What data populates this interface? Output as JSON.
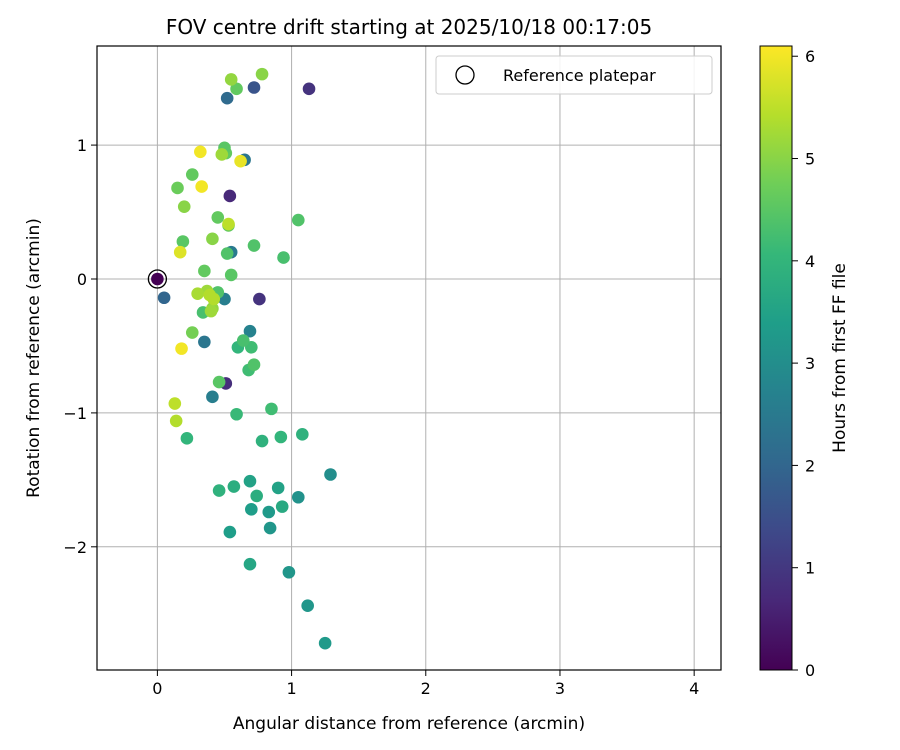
{
  "chart_data": {
    "type": "scatter",
    "title": "FOV centre drift starting at 2025/10/18 00:17:05",
    "xlabel": "Angular distance from reference (arcmin)",
    "ylabel": "Rotation from reference (arcmin)",
    "xlim": [
      -0.45,
      4.2
    ],
    "ylim": [
      -2.92,
      1.74
    ],
    "xticks": [
      0,
      1,
      2,
      3,
      4
    ],
    "xtick_labels": [
      "0",
      "1",
      "2",
      "3",
      "4"
    ],
    "yticks": [
      -2,
      -1,
      0,
      1
    ],
    "ytick_labels": [
      "−2",
      "−1",
      "0",
      "1"
    ],
    "grid": true,
    "legend": {
      "position": "top-right",
      "entries": [
        "Reference platepar"
      ]
    },
    "reference_point": {
      "x": 0,
      "y": 0,
      "label": "Reference platepar"
    },
    "colorbar": {
      "label": "Hours from first FF file",
      "colormap": "viridis",
      "range": [
        0,
        6.1
      ],
      "ticks": [
        0,
        1,
        2,
        3,
        4,
        5,
        6
      ],
      "tick_labels": [
        "0",
        "1",
        "2",
        "3",
        "4",
        "5",
        "6"
      ],
      "colors": [
        "#440154",
        "#482878",
        "#3e4989",
        "#31688e",
        "#26828e",
        "#1f9e89",
        "#35b779",
        "#6ece58",
        "#b5de2b",
        "#fde725"
      ]
    },
    "points": [
      {
        "x": 0.0,
        "y": 0.0,
        "t": 0.0
      },
      {
        "x": 1.13,
        "y": 1.42,
        "t": 0.9
      },
      {
        "x": 0.54,
        "y": 0.62,
        "t": 0.7
      },
      {
        "x": 0.76,
        "y": -0.15,
        "t": 0.9
      },
      {
        "x": 0.51,
        "y": -0.78,
        "t": 0.8
      },
      {
        "x": 0.72,
        "y": 1.43,
        "t": 1.6
      },
      {
        "x": 0.52,
        "y": 1.35,
        "t": 2.1
      },
      {
        "x": 0.05,
        "y": -0.14,
        "t": 2.0
      },
      {
        "x": 0.35,
        "y": -0.47,
        "t": 2.4
      },
      {
        "x": 0.41,
        "y": -0.88,
        "t": 2.6
      },
      {
        "x": 0.65,
        "y": 0.89,
        "t": 2.4
      },
      {
        "x": 0.55,
        "y": 0.2,
        "t": 2.5
      },
      {
        "x": 0.5,
        "y": -0.15,
        "t": 2.6
      },
      {
        "x": 0.69,
        "y": -0.39,
        "t": 2.7
      },
      {
        "x": 1.29,
        "y": -1.46,
        "t": 3.0
      },
      {
        "x": 1.25,
        "y": -2.72,
        "t": 3.3
      },
      {
        "x": 1.12,
        "y": -2.44,
        "t": 3.2
      },
      {
        "x": 0.98,
        "y": -2.19,
        "t": 3.2
      },
      {
        "x": 1.05,
        "y": -1.63,
        "t": 3.1
      },
      {
        "x": 0.84,
        "y": -1.86,
        "t": 3.2
      },
      {
        "x": 0.83,
        "y": -1.74,
        "t": 3.3
      },
      {
        "x": 0.7,
        "y": -1.72,
        "t": 3.4
      },
      {
        "x": 0.69,
        "y": -2.13,
        "t": 3.6
      },
      {
        "x": 0.54,
        "y": -1.89,
        "t": 3.4
      },
      {
        "x": 0.9,
        "y": -1.56,
        "t": 3.5
      },
      {
        "x": 0.93,
        "y": -1.7,
        "t": 3.7
      },
      {
        "x": 0.69,
        "y": -1.51,
        "t": 3.5
      },
      {
        "x": 0.57,
        "y": -1.55,
        "t": 3.8
      },
      {
        "x": 0.46,
        "y": -1.58,
        "t": 3.9
      },
      {
        "x": 0.74,
        "y": -1.62,
        "t": 3.8
      },
      {
        "x": 0.78,
        "y": -1.21,
        "t": 3.9
      },
      {
        "x": 0.92,
        "y": -1.18,
        "t": 4.0
      },
      {
        "x": 1.08,
        "y": -1.16,
        "t": 3.9
      },
      {
        "x": 0.22,
        "y": -1.19,
        "t": 4.0
      },
      {
        "x": 0.59,
        "y": -1.01,
        "t": 4.1
      },
      {
        "x": 0.85,
        "y": -0.97,
        "t": 4.2
      },
      {
        "x": 0.68,
        "y": -0.68,
        "t": 4.2
      },
      {
        "x": 0.72,
        "y": -0.64,
        "t": 4.4
      },
      {
        "x": 0.7,
        "y": -0.51,
        "t": 4.2
      },
      {
        "x": 0.6,
        "y": -0.51,
        "t": 4.0
      },
      {
        "x": 0.64,
        "y": -0.46,
        "t": 4.3
      },
      {
        "x": 0.46,
        "y": -0.77,
        "t": 4.5
      },
      {
        "x": 0.34,
        "y": -0.25,
        "t": 4.3
      },
      {
        "x": 0.45,
        "y": -0.1,
        "t": 4.4
      },
      {
        "x": 0.55,
        "y": 0.03,
        "t": 4.5
      },
      {
        "x": 0.35,
        "y": 0.06,
        "t": 4.6
      },
      {
        "x": 0.52,
        "y": 0.19,
        "t": 4.4
      },
      {
        "x": 0.72,
        "y": 0.25,
        "t": 4.4
      },
      {
        "x": 0.94,
        "y": 0.16,
        "t": 4.3
      },
      {
        "x": 1.05,
        "y": 0.44,
        "t": 4.4
      },
      {
        "x": 0.19,
        "y": 0.28,
        "t": 4.5
      },
      {
        "x": 0.45,
        "y": 0.46,
        "t": 4.6
      },
      {
        "x": 0.53,
        "y": 0.4,
        "t": 4.6
      },
      {
        "x": 0.15,
        "y": 0.68,
        "t": 4.7
      },
      {
        "x": 0.26,
        "y": 0.78,
        "t": 4.6
      },
      {
        "x": 0.51,
        "y": 0.94,
        "t": 4.6
      },
      {
        "x": 0.5,
        "y": 0.98,
        "t": 4.5
      },
      {
        "x": 0.59,
        "y": 1.42,
        "t": 4.6
      },
      {
        "x": 0.78,
        "y": 1.53,
        "t": 5.0
      },
      {
        "x": 0.55,
        "y": 1.49,
        "t": 5.1
      },
      {
        "x": 0.2,
        "y": 0.54,
        "t": 5.0
      },
      {
        "x": 0.41,
        "y": 0.3,
        "t": 5.0
      },
      {
        "x": 0.48,
        "y": 0.93,
        "t": 5.2
      },
      {
        "x": 0.26,
        "y": -0.4,
        "t": 4.8
      },
      {
        "x": 0.41,
        "y": -0.22,
        "t": 5.1
      },
      {
        "x": 0.4,
        "y": -0.24,
        "t": 5.2
      },
      {
        "x": 0.37,
        "y": -0.09,
        "t": 5.2
      },
      {
        "x": 0.3,
        "y": -0.11,
        "t": 5.3
      },
      {
        "x": 0.42,
        "y": -0.15,
        "t": 5.4
      },
      {
        "x": 0.39,
        "y": -0.12,
        "t": 5.4
      },
      {
        "x": 0.53,
        "y": 0.41,
        "t": 5.5
      },
      {
        "x": 0.13,
        "y": -0.93,
        "t": 5.5
      },
      {
        "x": 0.14,
        "y": -1.06,
        "t": 5.4
      },
      {
        "x": 0.17,
        "y": 0.2,
        "t": 5.8
      },
      {
        "x": 0.32,
        "y": 0.95,
        "t": 6.0
      },
      {
        "x": 0.33,
        "y": 0.69,
        "t": 6.0
      },
      {
        "x": 0.62,
        "y": 0.88,
        "t": 5.9
      },
      {
        "x": 0.18,
        "y": -0.52,
        "t": 6.0
      }
    ]
  }
}
